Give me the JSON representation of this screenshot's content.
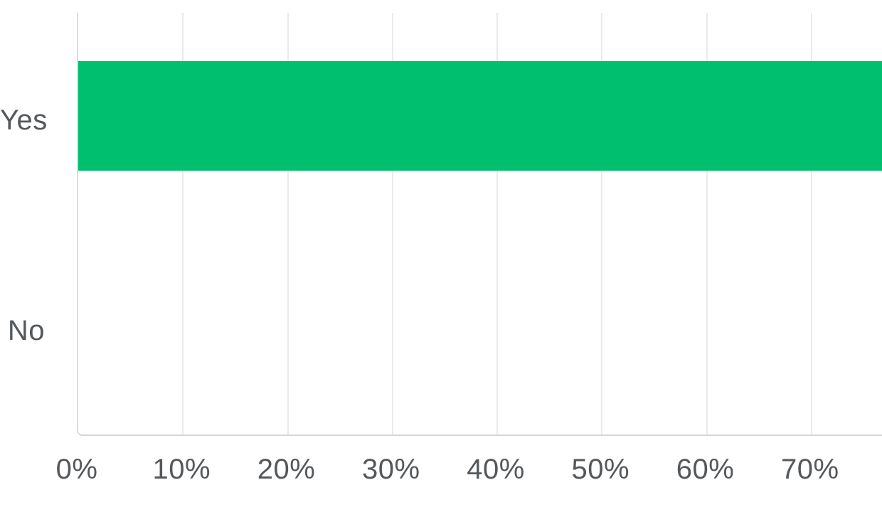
{
  "chart_data": {
    "type": "bar",
    "orientation": "horizontal",
    "title": "",
    "xlabel": "",
    "ylabel": "",
    "categories": [
      "Yes",
      "No"
    ],
    "values_percent": [
      77,
      0
    ],
    "value_note": "Yes bar is cut off at the right edge of the screenshot (extends beyond ~77% visible); No has no visible bar (0%).",
    "x_tick_labels": [
      "0%",
      "10%",
      "20%",
      "30%",
      "40%",
      "50%",
      "60%",
      "70%"
    ],
    "x_tick_percents": [
      0,
      10,
      20,
      30,
      40,
      50,
      60,
      70
    ],
    "xlim_visible": [
      0,
      77
    ],
    "grid": "vertical-gridlines",
    "legend": "none",
    "bar_color": "#00BF6F",
    "gridline_color": "#eaeaea",
    "axis_line_color": "#d8d8d8",
    "label_color": "#55585b",
    "background_color": "#ffffff"
  }
}
